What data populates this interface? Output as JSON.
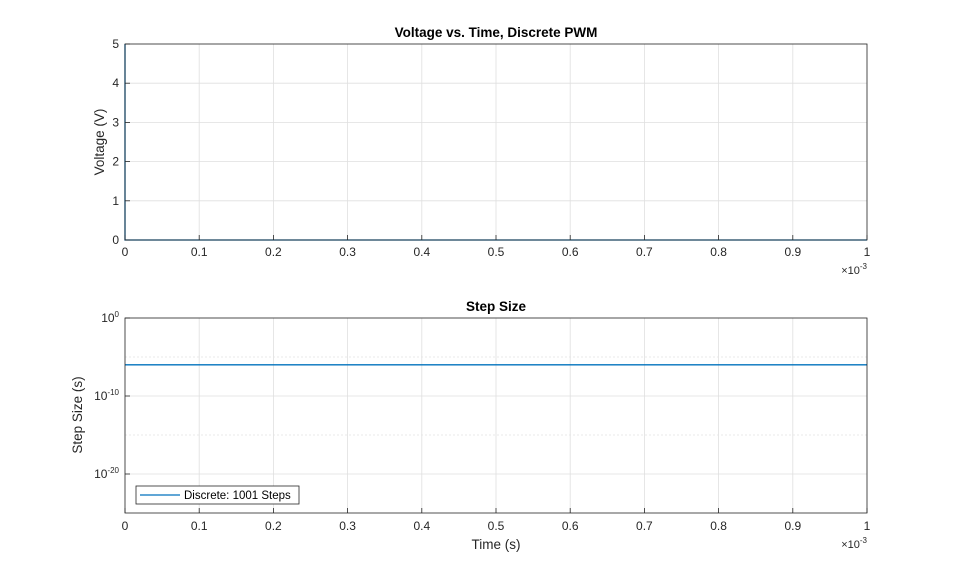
{
  "chart_data": [
    {
      "type": "line",
      "title": "Voltage vs. Time, Discrete PWM",
      "xlabel": "",
      "ylabel": "Voltage (V)",
      "xlim": [
        0,
        1
      ],
      "ylim": [
        0,
        5
      ],
      "x_multiplier": {
        "base": "×10",
        "exponent": "-3"
      },
      "x_ticks": [
        "0",
        "0.1",
        "0.2",
        "0.3",
        "0.4",
        "0.5",
        "0.6",
        "0.7",
        "0.8",
        "0.9",
        "1"
      ],
      "y_ticks": [
        "0",
        "1",
        "2",
        "3",
        "4",
        "5"
      ],
      "grid": true,
      "series": [
        {
          "color": "#0072BD",
          "x": [
            0,
            0,
            0.001,
            0.001,
            1
          ],
          "y": [
            5,
            0,
            0,
            0,
            0
          ]
        }
      ]
    },
    {
      "type": "line",
      "title": "Step Size",
      "xlabel": "Time (s)",
      "ylabel": "Step Size (s)",
      "xlim": [
        0,
        1
      ],
      "ylim_log10": [
        -25,
        0
      ],
      "y_scale": "log",
      "x_multiplier": {
        "base": "×10",
        "exponent": "-3"
      },
      "x_ticks": [
        "0",
        "0.1",
        "0.2",
        "0.3",
        "0.4",
        "0.5",
        "0.6",
        "0.7",
        "0.8",
        "0.9",
        "1"
      ],
      "y_ticks": [
        {
          "base": "10",
          "exponent": "0",
          "value_log10": 0
        },
        {
          "base": "10",
          "exponent": "-10",
          "value_log10": -10
        },
        {
          "base": "10",
          "exponent": "-20",
          "value_log10": -20
        }
      ],
      "minor_grid_log10": [
        -5,
        -15
      ],
      "grid": true,
      "legend_position": "bottom-left",
      "series": [
        {
          "name": "Discrete: 1001 Steps",
          "color": "#0072BD",
          "x": [
            0,
            1
          ],
          "y": [
            1e-06,
            1e-06
          ]
        }
      ]
    }
  ]
}
